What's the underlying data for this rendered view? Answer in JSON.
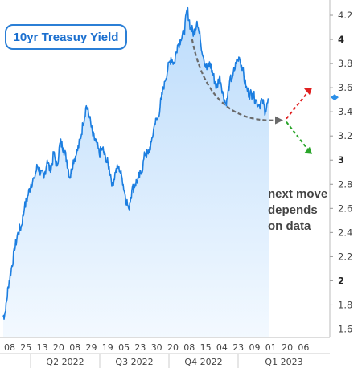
{
  "chart_data": {
    "type": "area",
    "title": "10yr Treasuy Yield",
    "ylim": [
      1.6,
      4.3
    ],
    "yticks": [
      1.6,
      1.8,
      2,
      2.2,
      2.4,
      2.6,
      2.8,
      3,
      3.2,
      3.4,
      3.6,
      3.8,
      4,
      4.2
    ],
    "ytick_labels": [
      "1.6",
      "1.8",
      "2",
      "2.2",
      "2.4",
      "2.6",
      "2.8",
      "3",
      "3.2",
      "3.4",
      "3.6",
      "3.8",
      "4",
      "4.2"
    ],
    "bold_yticks": [
      "2",
      "3",
      "4"
    ],
    "axis_side": "right",
    "xtick_labels": [
      "08",
      "25",
      "13",
      "20",
      "08",
      "29",
      "19",
      "05",
      "23",
      "30",
      "20",
      "08",
      "15",
      "04",
      "23",
      "09",
      "01",
      "20",
      "06"
    ],
    "quarter_labels": [
      "Q2 2022",
      "Q3 2022",
      "Q4 2022",
      "Q1 2023"
    ],
    "x": [
      0,
      3,
      6,
      10,
      14,
      18,
      22,
      26,
      30,
      34,
      38,
      42,
      46,
      50,
      54,
      58,
      62,
      66,
      70,
      74,
      78,
      82,
      86,
      90,
      94,
      98,
      102,
      106,
      110,
      114,
      118,
      122,
      126,
      130,
      134,
      138,
      142,
      146,
      150,
      154,
      158,
      162,
      166,
      170,
      174,
      178,
      182,
      186,
      190,
      194,
      198,
      202,
      206,
      210,
      214,
      218,
      222,
      226,
      230,
      234,
      238,
      242,
      246,
      250,
      254,
      258,
      262,
      266,
      270,
      274,
      278,
      282,
      286,
      290,
      294,
      298,
      302,
      306,
      310,
      314,
      318,
      322,
      326
    ],
    "values": [
      1.7,
      1.75,
      1.95,
      2.1,
      2.25,
      2.4,
      2.45,
      2.6,
      2.7,
      2.8,
      2.85,
      2.95,
      2.9,
      2.85,
      3.0,
      2.9,
      3.05,
      2.95,
      3.15,
      3.1,
      3.0,
      2.85,
      3.0,
      3.05,
      3.15,
      3.3,
      3.45,
      3.35,
      3.2,
      3.15,
      3.05,
      3.1,
      3.0,
      2.95,
      2.8,
      2.9,
      2.95,
      2.85,
      2.7,
      2.6,
      2.75,
      2.8,
      2.85,
      2.9,
      3.05,
      3.05,
      3.15,
      3.3,
      3.35,
      3.5,
      3.65,
      3.75,
      3.85,
      3.8,
      3.95,
      4.0,
      4.05,
      4.25,
      4.1,
      4.05,
      4.15,
      4.0,
      3.85,
      3.75,
      3.8,
      3.7,
      3.6,
      3.7,
      3.55,
      3.45,
      3.65,
      3.7,
      3.8,
      3.85,
      3.75,
      3.6,
      3.55,
      3.55,
      3.5,
      3.45,
      3.5,
      3.4,
      3.5
    ],
    "last_value": 3.52,
    "projection": {
      "from_value": 3.33,
      "up_to": 3.6,
      "down_to": 3.05
    },
    "annotation": [
      "next move",
      "depends",
      "on data"
    ],
    "colors": {
      "line": "#1c7ee0",
      "fill_top": "#bcdcfb",
      "fill_bottom": "#f3f9ff",
      "up": "#e02020",
      "down": "#2aa52a",
      "dashed": "#6a6a6a",
      "marker": "#2b8fe8"
    }
  }
}
